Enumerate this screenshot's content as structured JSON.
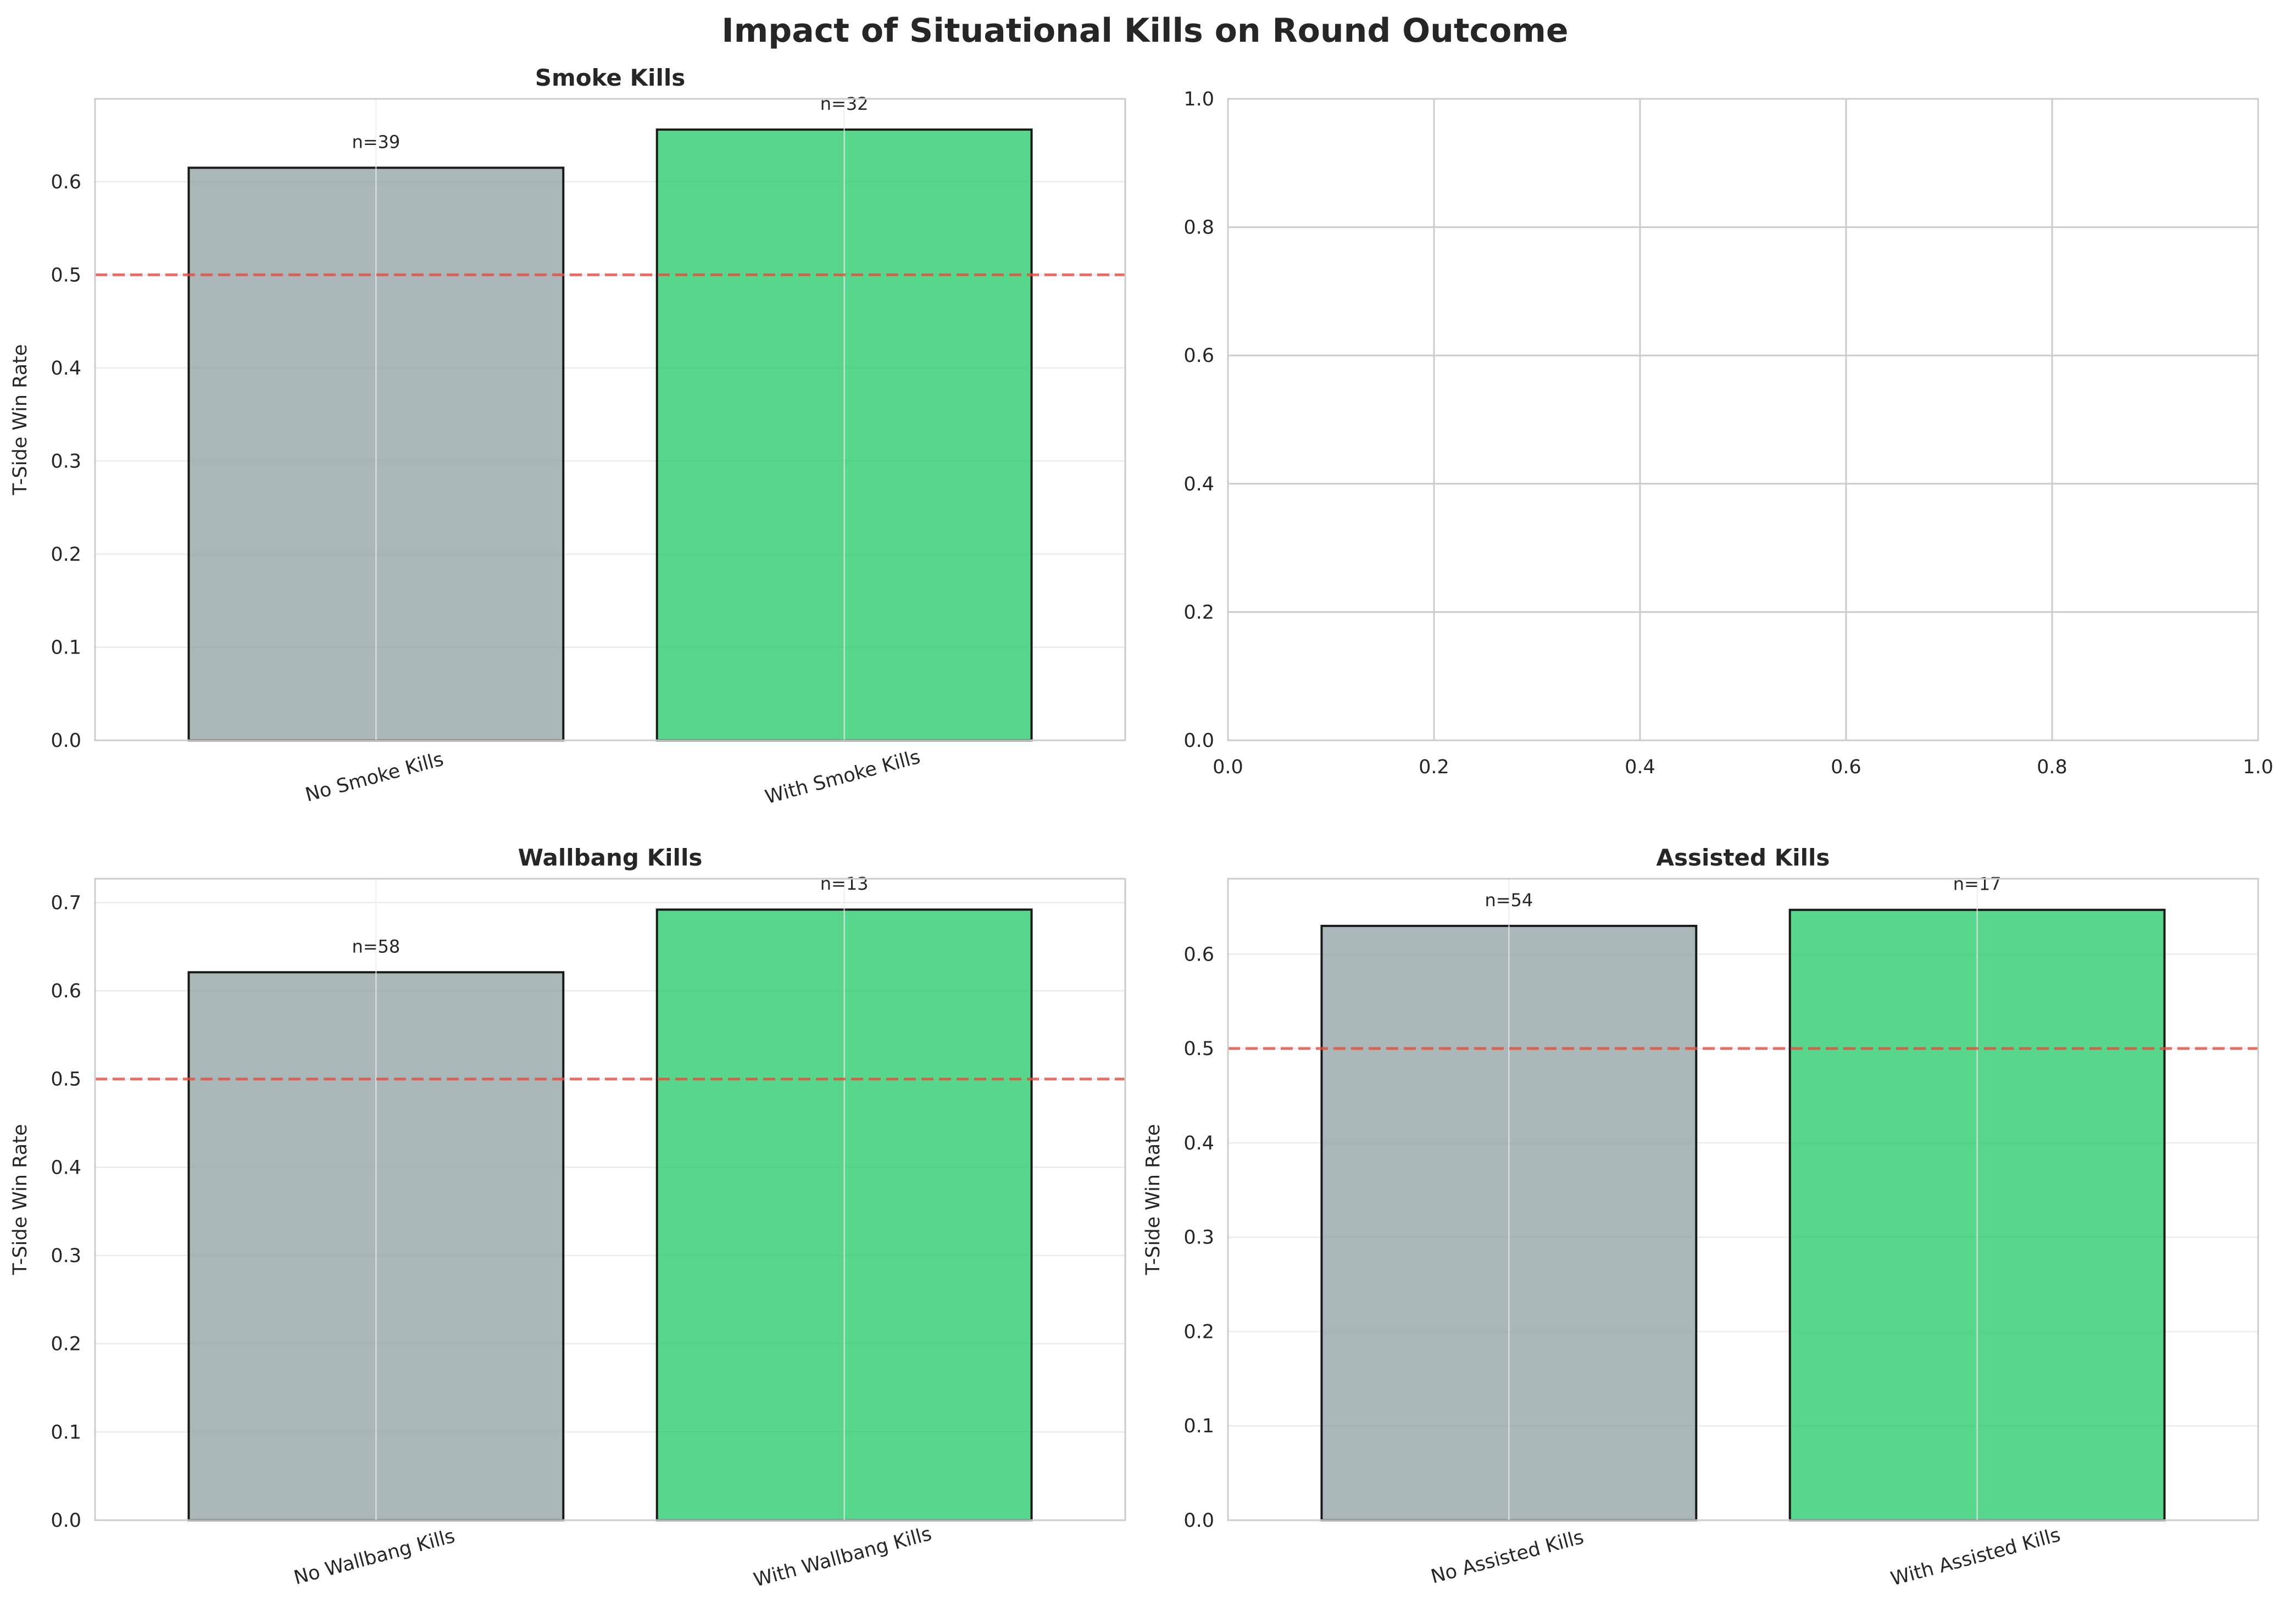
{
  "figure": {
    "title": "Impact of Situational Kills on Round Outcome"
  },
  "colors": {
    "background": "#ffffff",
    "grid": "#ebebeb",
    "empty_grid": "#cccccc",
    "spine": "#cccccc",
    "bar_without": "#95a5a6",
    "bar_with": "#2ecc71",
    "bar_edge": "#1a1a1a",
    "reference_line": "#e74c3c",
    "text": "#262626"
  },
  "chart_data": [
    {
      "type": "bar",
      "title": "Smoke Kills",
      "ylabel": "T-Side Win Rate",
      "xlabel": "",
      "categories": [
        "No Smoke Kills",
        "With Smoke Kills"
      ],
      "values": [
        0.615,
        0.656
      ],
      "counts": [
        "n=39",
        "n=32"
      ],
      "ylim": [
        0,
        0.689
      ],
      "yticks": [
        0,
        0.1,
        0.2,
        0.3,
        0.4,
        0.5,
        0.6
      ],
      "ytick_labels": [
        "0.0",
        "0.1",
        "0.2",
        "0.3",
        "0.4",
        "0.5",
        "0.6"
      ],
      "reference_line": 0.5,
      "grid": true,
      "legend": "none"
    },
    {
      "type": "empty",
      "title": "",
      "xlim": [
        0,
        1
      ],
      "ylim": [
        0,
        1
      ],
      "xticks": [
        0,
        0.2,
        0.4,
        0.6,
        0.8,
        1.0
      ],
      "yticks": [
        0,
        0.2,
        0.4,
        0.6,
        0.8,
        1.0
      ],
      "xtick_labels": [
        "0.0",
        "0.2",
        "0.4",
        "0.6",
        "0.8",
        "1.0"
      ],
      "ytick_labels": [
        "0.0",
        "0.2",
        "0.4",
        "0.6",
        "0.8",
        "1.0"
      ],
      "grid": true
    },
    {
      "type": "bar",
      "title": "Wallbang Kills",
      "ylabel": "T-Side Win Rate",
      "xlabel": "",
      "categories": [
        "No Wallbang Kills",
        "With Wallbang Kills"
      ],
      "values": [
        0.621,
        0.692
      ],
      "counts": [
        "n=58",
        "n=13"
      ],
      "ylim": [
        0,
        0.727
      ],
      "yticks": [
        0,
        0.1,
        0.2,
        0.3,
        0.4,
        0.5,
        0.6,
        0.7
      ],
      "ytick_labels": [
        "0.0",
        "0.1",
        "0.2",
        "0.3",
        "0.4",
        "0.5",
        "0.6",
        "0.7"
      ],
      "reference_line": 0.5,
      "grid": true,
      "legend": "none"
    },
    {
      "type": "bar",
      "title": "Assisted Kills",
      "ylabel": "T-Side Win Rate",
      "xlabel": "",
      "categories": [
        "No Assisted Kills",
        "With Assisted Kills"
      ],
      "values": [
        0.63,
        0.647
      ],
      "counts": [
        "n=54",
        "n=17"
      ],
      "ylim": [
        0,
        0.68
      ],
      "yticks": [
        0,
        0.1,
        0.2,
        0.3,
        0.4,
        0.5,
        0.6
      ],
      "ytick_labels": [
        "0.0",
        "0.1",
        "0.2",
        "0.3",
        "0.4",
        "0.5",
        "0.6"
      ],
      "reference_line": 0.5,
      "grid": true,
      "legend": "none"
    }
  ]
}
